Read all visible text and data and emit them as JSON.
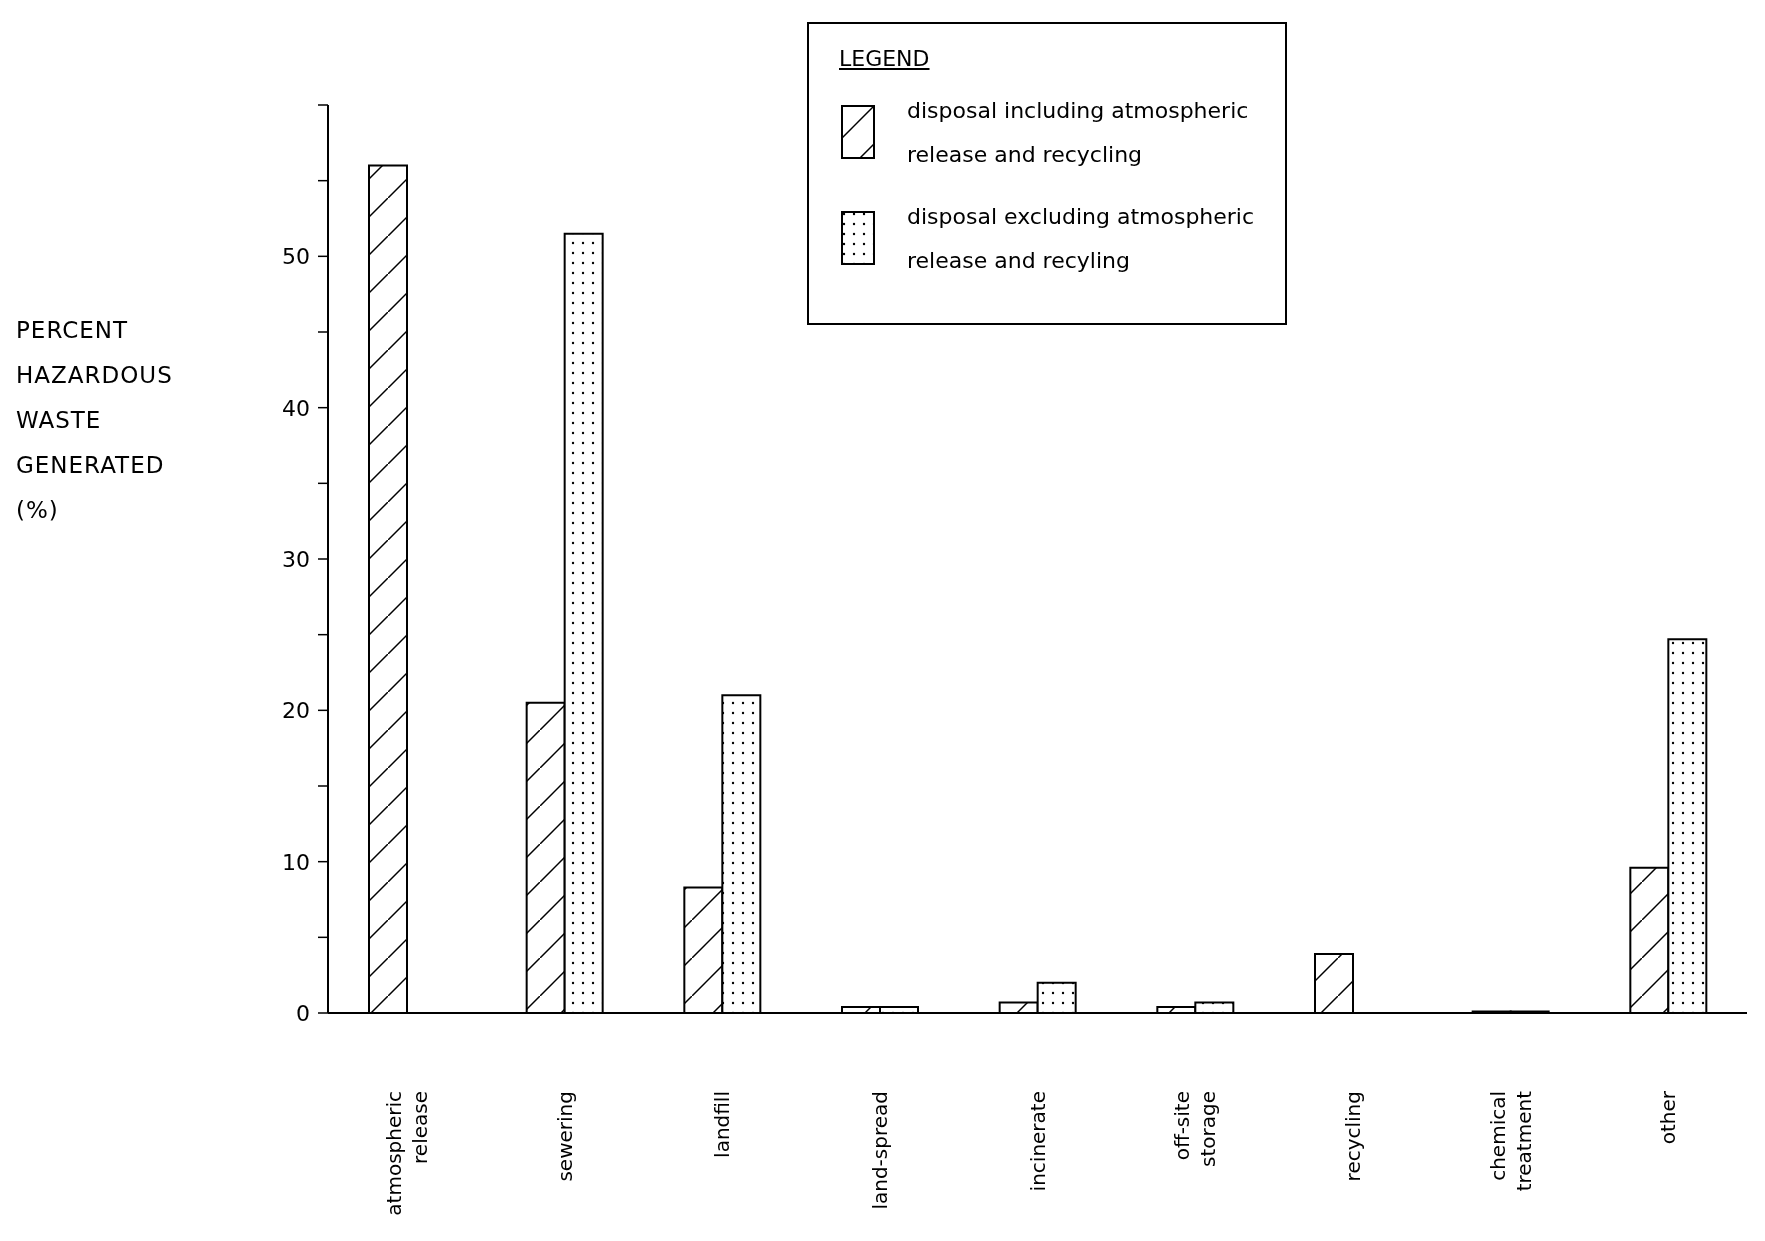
{
  "chart_data": {
    "type": "bar",
    "ylabel": "PERCENT HAZARDOUS WASTE GENERATED (%)",
    "legend_title": "LEGEND",
    "categories": [
      "atmospheric release",
      "sewering",
      "landfill",
      "land-spread",
      "incinerate",
      "off-site storage",
      "recycling",
      "chemical treatment",
      "other"
    ],
    "series": [
      {
        "name": "disposal including atmospheric release and recycling",
        "color": "#000000",
        "values": [
          56,
          20.5,
          8.3,
          0.4,
          0.7,
          0.4,
          3.9,
          0.1,
          9.6
        ]
      },
      {
        "name": "disposal excluding atmospheric release and recyling",
        "color": "#000000",
        "values": [
          0,
          51.5,
          21,
          0.4,
          2,
          0.7,
          0,
          0.1,
          24.7
        ]
      }
    ],
    "ylim": [
      0,
      60
    ],
    "yticks": [
      0,
      {
        "value": 5,
        "label": null
      },
      10,
      {
        "value": 15,
        "label": null
      },
      20,
      {
        "value": 25,
        "label": null
      },
      30,
      {
        "value": 35,
        "label": null
      },
      40,
      {
        "value": 45,
        "label": null
      },
      50,
      {
        "value": 55,
        "label": null
      },
      {
        "value": 60,
        "label": null
      }
    ],
    "grid": false,
    "legend": "top right"
  }
}
